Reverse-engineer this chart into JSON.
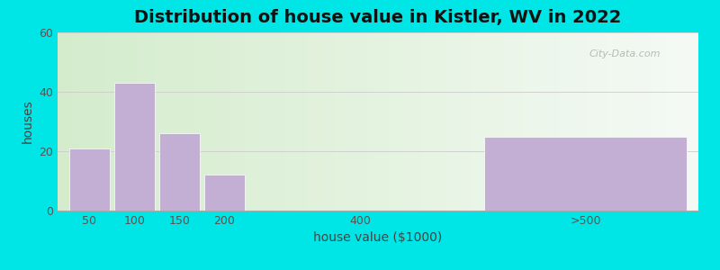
{
  "title": "Distribution of house value in Kistler, WV in 2022",
  "xlabel": "house value ($1000)",
  "ylabel": "houses",
  "bar_heights": [
    21,
    43,
    26,
    12,
    0,
    25
  ],
  "bar_labels": [
    "50",
    "100",
    "150",
    "200",
    "400",
    ">500"
  ],
  "bar_color": "#c4afd4",
  "bar_edgecolor": "#ffffff",
  "ylim": [
    0,
    60
  ],
  "yticks": [
    0,
    20,
    40,
    60
  ],
  "bg_outer": "#00e5e5",
  "bg_inner_left": "#d4eccc",
  "bg_inner_right": "#f5faf5",
  "title_fontsize": 14,
  "axis_label_fontsize": 10,
  "tick_fontsize": 9,
  "watermark": "City-Data.com",
  "bar_positions": [
    0,
    1,
    2,
    3,
    6,
    11
  ],
  "bar_widths": [
    0.9,
    0.9,
    0.9,
    0.9,
    0.0,
    4.5
  ],
  "xtick_positions": [
    0,
    1,
    2,
    3,
    6,
    11
  ],
  "xlim": [
    -0.7,
    13.5
  ]
}
